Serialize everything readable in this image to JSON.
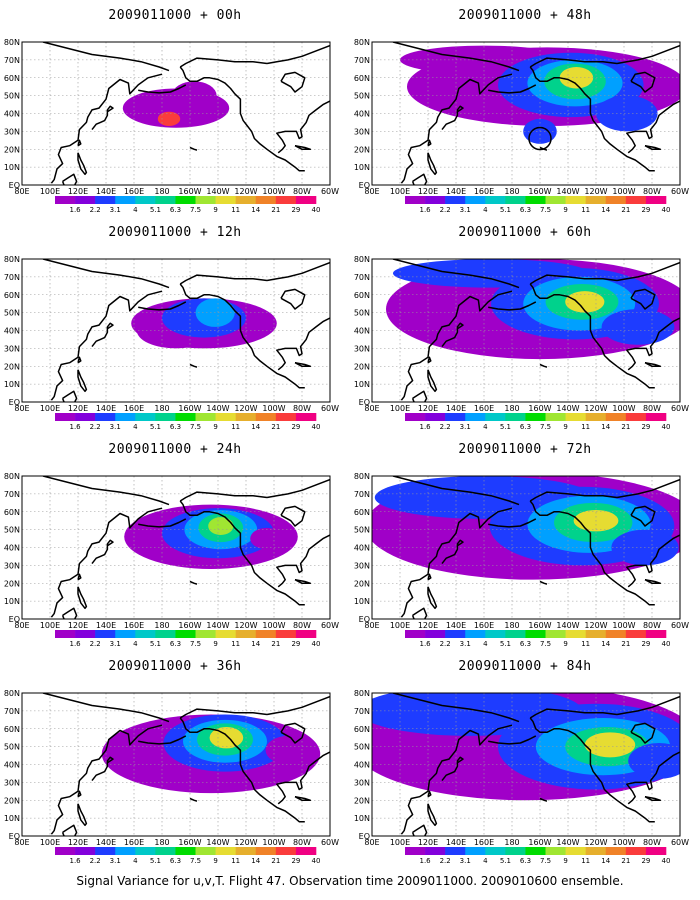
{
  "caption": "Signal Variance for u,v,T. Flight 47. Observation time 2009011000. 2009010600 ensemble.",
  "x_ticks": [
    "80E",
    "100E",
    "120E",
    "140E",
    "160E",
    "180",
    "160W",
    "140W",
    "120W",
    "100W",
    "80W",
    "60W"
  ],
  "y_ticks": [
    "EQ",
    "10N",
    "20N",
    "30N",
    "40N",
    "50N",
    "60N",
    "70N",
    "80N"
  ],
  "colorbar": {
    "labels": [
      "1.6",
      "2.2",
      "3.1",
      "4",
      "5.1",
      "6.3",
      "7.5",
      "9",
      "11",
      "14",
      "21",
      "29",
      "40"
    ],
    "colors": [
      "#a000c8",
      "#8200dc",
      "#1e3cff",
      "#00a0ff",
      "#00c8c8",
      "#00d28c",
      "#00dc00",
      "#a0e632",
      "#e6dc32",
      "#e6af2d",
      "#f08228",
      "#fa3c3c",
      "#f00082"
    ]
  },
  "panels": [
    {
      "title": "2009011000 + 00h",
      "lead_hours": 0
    },
    {
      "title": "2009011000 + 48h",
      "lead_hours": 48
    },
    {
      "title": "2009011000 + 12h",
      "lead_hours": 12
    },
    {
      "title": "2009011000 + 60h",
      "lead_hours": 60
    },
    {
      "title": "2009011000 + 24h",
      "lead_hours": 24
    },
    {
      "title": "2009011000 + 72h",
      "lead_hours": 72
    },
    {
      "title": "2009011000 + 36h",
      "lead_hours": 36
    },
    {
      "title": "2009011000 + 84h",
      "lead_hours": 84
    }
  ]
}
